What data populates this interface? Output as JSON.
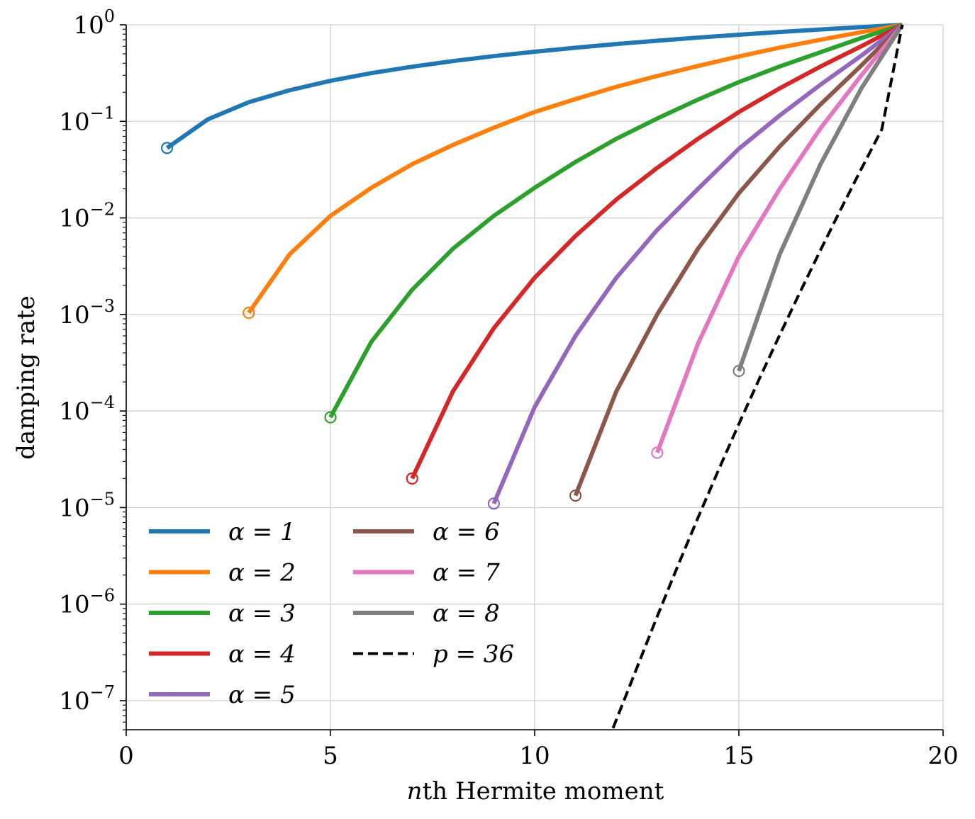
{
  "chart_data": {
    "type": "line",
    "title": "",
    "xlabel": {
      "italic": "n",
      "rest": "th Hermite moment"
    },
    "ylabel": "damping rate",
    "xlim": [
      0,
      20
    ],
    "ylim": [
      5e-08,
      1
    ],
    "yscale": "log",
    "grid": true,
    "legend_position": "bottom-left",
    "legend_columns": 2,
    "x_ticks": [
      "0",
      "5",
      "10",
      "15",
      "20"
    ],
    "y_ticks": [
      {
        "base": "10",
        "exp": "0"
      },
      {
        "base": "10",
        "exp": "−1"
      },
      {
        "base": "10",
        "exp": "−2"
      },
      {
        "base": "10",
        "exp": "−3"
      },
      {
        "base": "10",
        "exp": "−4"
      },
      {
        "base": "10",
        "exp": "−5"
      },
      {
        "base": "10",
        "exp": "−6"
      },
      {
        "base": "10",
        "exp": "−7"
      }
    ],
    "series": [
      {
        "name": "α = 1",
        "color": "#1f77b4",
        "style": "solid",
        "x": [
          1,
          2,
          3,
          4,
          5,
          6,
          7,
          8,
          9,
          10,
          11,
          12,
          13,
          14,
          15,
          16,
          17,
          18,
          19
        ],
        "y": [
          0.053,
          0.105,
          0.158,
          0.21,
          0.263,
          0.316,
          0.368,
          0.421,
          0.474,
          0.526,
          0.579,
          0.632,
          0.684,
          0.737,
          0.789,
          0.842,
          0.895,
          0.947,
          1.0
        ]
      },
      {
        "name": "α = 2",
        "color": "#ff7f0e",
        "style": "solid",
        "x": [
          3,
          4,
          5,
          6,
          7,
          8,
          9,
          10,
          11,
          12,
          13,
          14,
          15,
          16,
          17,
          18,
          19
        ],
        "y": [
          0.00104,
          0.0042,
          0.0105,
          0.0205,
          0.036,
          0.057,
          0.086,
          0.125,
          0.17,
          0.228,
          0.295,
          0.375,
          0.47,
          0.58,
          0.7,
          0.84,
          1.0
        ]
      },
      {
        "name": "α = 3",
        "color": "#2ca02c",
        "style": "solid",
        "x": [
          5,
          6,
          7,
          8,
          9,
          10,
          11,
          12,
          13,
          14,
          15,
          16,
          17,
          18,
          19
        ],
        "y": [
          8.6e-05,
          0.00052,
          0.0018,
          0.0048,
          0.0105,
          0.0205,
          0.038,
          0.066,
          0.107,
          0.168,
          0.255,
          0.37,
          0.52,
          0.73,
          1.0
        ]
      },
      {
        "name": "α = 4",
        "color": "#d62728",
        "style": "solid",
        "x": [
          7,
          8,
          9,
          10,
          11,
          12,
          13,
          14,
          15,
          16,
          17,
          18,
          19
        ],
        "y": [
          2e-05,
          0.00016,
          0.00072,
          0.0024,
          0.0065,
          0.0155,
          0.033,
          0.066,
          0.125,
          0.22,
          0.37,
          0.6,
          1.0
        ]
      },
      {
        "name": "α = 5",
        "color": "#9467bd",
        "style": "solid",
        "x": [
          9,
          10,
          11,
          12,
          13,
          14,
          15,
          16,
          17,
          18,
          19
        ],
        "y": [
          1.1e-05,
          0.00011,
          0.0006,
          0.0024,
          0.0075,
          0.02,
          0.052,
          0.115,
          0.24,
          0.48,
          1.0
        ]
      },
      {
        "name": "α = 6",
        "color": "#8c564b",
        "style": "solid",
        "x": [
          11,
          12,
          13,
          14,
          15,
          16,
          17,
          18,
          19
        ],
        "y": [
          1.33e-05,
          0.00016,
          0.001,
          0.0048,
          0.018,
          0.055,
          0.15,
          0.38,
          1.0
        ]
      },
      {
        "name": "α = 7",
        "color": "#e377c2",
        "style": "solid",
        "x": [
          13,
          14,
          15,
          16,
          17,
          18,
          19
        ],
        "y": [
          3.7e-05,
          0.0005,
          0.004,
          0.02,
          0.085,
          0.3,
          1.0
        ]
      },
      {
        "name": "α = 8",
        "color": "#7f7f7f",
        "style": "solid",
        "x": [
          15,
          16,
          17,
          18,
          19
        ],
        "y": [
          0.00026,
          0.0042,
          0.036,
          0.22,
          1.0
        ]
      },
      {
        "name": "p = 36",
        "color": "#000000",
        "style": "dashed",
        "x": [
          11.92,
          12.5,
          13,
          13.5,
          14,
          14.5,
          15,
          15.5,
          16,
          16.5,
          17,
          17.5,
          18,
          18.5,
          19
        ],
        "y": [
          5.2e-08,
          2.17e-07,
          7.45e-07,
          2.46e-06,
          7.87e-06,
          2.44e-05,
          7.34e-05,
          0.000215,
          0.000613,
          0.00171,
          0.00465,
          0.0124,
          0.0323,
          0.0826,
          1.0
        ]
      }
    ]
  }
}
